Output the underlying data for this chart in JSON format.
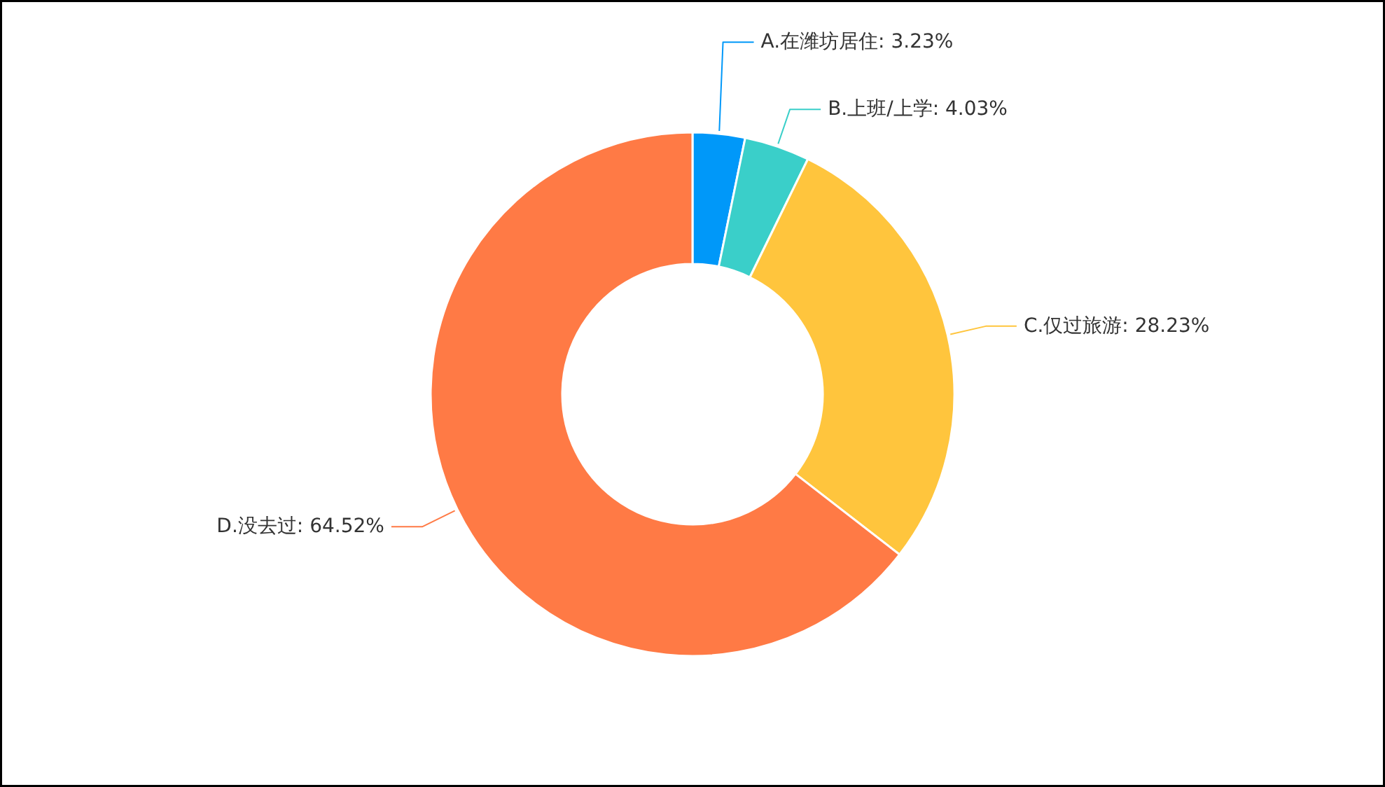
{
  "chart_data": {
    "type": "donut",
    "categories": [
      "A.在潍坊居住",
      "B.上班/上学",
      "C.仅过旅游",
      "D.没去过"
    ],
    "values": [
      3.23,
      4.03,
      28.23,
      64.52
    ],
    "colors": [
      "#0098f9",
      "#3acfc9",
      "#ffc53d",
      "#ff7a45"
    ],
    "value_labels": [
      "3.23%",
      "4.03%",
      "28.23%",
      "64.52%"
    ]
  }
}
